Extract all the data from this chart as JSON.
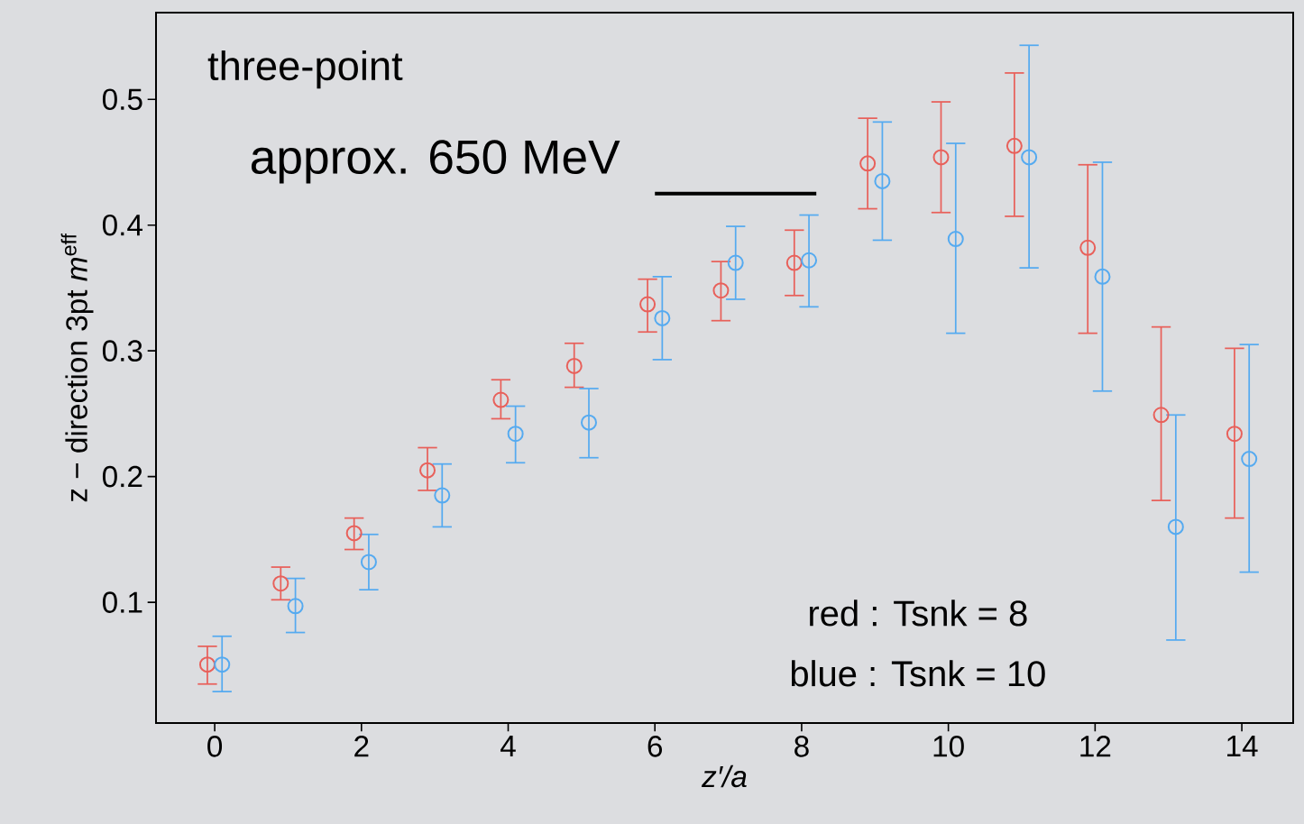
{
  "chart_data": {
    "type": "scatter",
    "xlabel": "z′/a",
    "ylabel": "z − direction 3pt *m*$^{eff}$",
    "xlim": [
      -0.8,
      14.7
    ],
    "ylim": [
      0.004,
      0.569
    ],
    "xticks": [
      0,
      2,
      4,
      6,
      8,
      10,
      12,
      14
    ],
    "yticks": [
      0.1,
      0.2,
      0.3,
      0.4,
      0.5
    ],
    "marker": "circle",
    "grid": false,
    "legend": false,
    "series": [
      {
        "color": "#e8605a",
        "x": [
          -0.1,
          0.9,
          1.9,
          2.9,
          3.9,
          4.9,
          5.9,
          6.9,
          7.9,
          8.9,
          9.9,
          10.9,
          11.9,
          12.9,
          13.9
        ],
        "values": [
          0.0505,
          0.115,
          0.155,
          0.205,
          0.261,
          0.288,
          0.337,
          0.348,
          0.37,
          0.449,
          0.454,
          0.463,
          0.382,
          0.249,
          0.234
        ],
        "errors": [
          [
            0.035,
            0.065
          ],
          [
            0.102,
            0.128
          ],
          [
            0.142,
            0.167
          ],
          [
            0.189,
            0.223
          ],
          [
            0.246,
            0.277
          ],
          [
            0.271,
            0.306
          ],
          [
            0.315,
            0.357
          ],
          [
            0.324,
            0.371
          ],
          [
            0.344,
            0.396
          ],
          [
            0.413,
            0.485
          ],
          [
            0.41,
            0.498
          ],
          [
            0.407,
            0.521
          ],
          [
            0.314,
            0.448
          ],
          [
            0.181,
            0.319
          ],
          [
            0.167,
            0.302
          ]
        ]
      },
      {
        "color": "#55aaf0",
        "x": [
          0.1,
          1.1,
          2.1,
          3.1,
          4.1,
          5.1,
          6.1,
          7.1,
          8.1,
          9.1,
          10.1,
          11.1,
          12.1,
          13.1,
          14.1
        ],
        "values": [
          0.0505,
          0.097,
          0.132,
          0.185,
          0.234,
          0.243,
          0.326,
          0.37,
          0.372,
          0.435,
          0.389,
          0.454,
          0.359,
          0.16,
          0.214
        ],
        "errors": [
          [
            0.029,
            0.073
          ],
          [
            0.076,
            0.119
          ],
          [
            0.11,
            0.154
          ],
          [
            0.16,
            0.21
          ],
          [
            0.211,
            0.256
          ],
          [
            0.215,
            0.27
          ],
          [
            0.293,
            0.359
          ],
          [
            0.341,
            0.399
          ],
          [
            0.335,
            0.408
          ],
          [
            0.388,
            0.482
          ],
          [
            0.314,
            0.465
          ],
          [
            0.366,
            0.543
          ],
          [
            0.268,
            0.45
          ],
          [
            0.07,
            0.249
          ],
          [
            0.124,
            0.305
          ]
        ]
      },
      {
        "type": "line",
        "marker": "none",
        "color": "#000000",
        "x": [
          6.0,
          8.2
        ],
        "values": [
          0.425,
          0.425
        ]
      }
    ],
    "annotations": [
      "three-point",
      "approx. 650 MeV",
      "red : Tsnk = 8",
      "blue : Tsnk = 10"
    ]
  }
}
